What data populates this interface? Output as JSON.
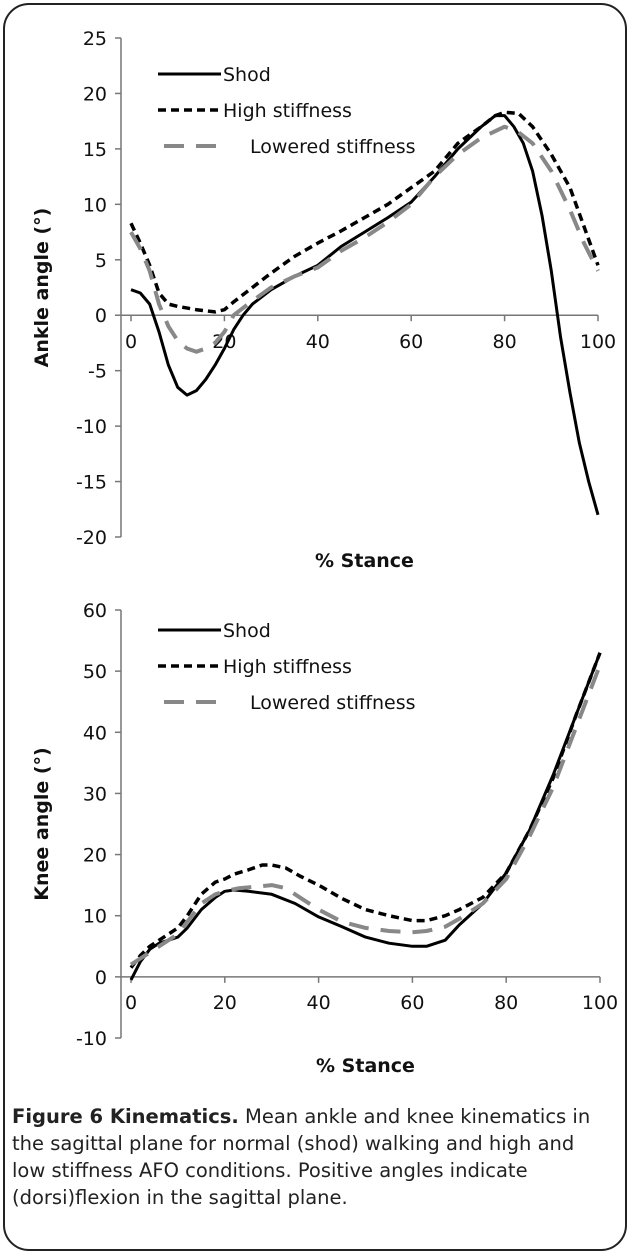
{
  "chart_data": [
    {
      "type": "line",
      "title": "",
      "xlabel": "% Stance",
      "ylabel": "Ankle angle (°)",
      "xlim": [
        0,
        100
      ],
      "ylim": [
        -20,
        25
      ],
      "xticks": [
        "0",
        "20",
        "40",
        "60",
        "80",
        "100"
      ],
      "yticks": [
        "-20",
        "-15",
        "-10",
        "-5",
        "0",
        "5",
        "10",
        "15",
        "20",
        "25"
      ],
      "grid": false,
      "legend": "top-left",
      "series": [
        {
          "name": "Shod",
          "style": "solid",
          "color": "#000000",
          "points": [
            [
              0,
              2.3
            ],
            [
              2,
              2.0
            ],
            [
              4,
              1.0
            ],
            [
              6,
              -1.5
            ],
            [
              8,
              -4.5
            ],
            [
              10,
              -6.5
            ],
            [
              12,
              -7.2
            ],
            [
              14,
              -6.8
            ],
            [
              16,
              -5.8
            ],
            [
              18,
              -4.5
            ],
            [
              20,
              -3.0
            ],
            [
              22,
              -1.3
            ],
            [
              24,
              0.0
            ],
            [
              26,
              1.0
            ],
            [
              30,
              2.3
            ],
            [
              35,
              3.5
            ],
            [
              40,
              4.5
            ],
            [
              45,
              6.2
            ],
            [
              50,
              7.5
            ],
            [
              55,
              8.8
            ],
            [
              60,
              10.2
            ],
            [
              65,
              12.5
            ],
            [
              70,
              15.0
            ],
            [
              75,
              17.0
            ],
            [
              78,
              18.0
            ],
            [
              80,
              18.0
            ],
            [
              82,
              17.0
            ],
            [
              84,
              15.5
            ],
            [
              86,
              13.0
            ],
            [
              88,
              9.0
            ],
            [
              90,
              4.0
            ],
            [
              92,
              -2.0
            ],
            [
              94,
              -7.0
            ],
            [
              96,
              -11.5
            ],
            [
              98,
              -15.0
            ],
            [
              100,
              -18.0
            ]
          ]
        },
        {
          "name": "High stiffness",
          "style": "dashed",
          "color": "#000000",
          "points": [
            [
              0,
              8.3
            ],
            [
              2,
              6.5
            ],
            [
              4,
              4.5
            ],
            [
              6,
              2.0
            ],
            [
              8,
              1.0
            ],
            [
              10,
              0.8
            ],
            [
              14,
              0.5
            ],
            [
              18,
              0.3
            ],
            [
              20,
              0.5
            ],
            [
              22,
              1.2
            ],
            [
              26,
              2.5
            ],
            [
              30,
              3.8
            ],
            [
              35,
              5.3
            ],
            [
              40,
              6.5
            ],
            [
              45,
              7.6
            ],
            [
              50,
              8.8
            ],
            [
              55,
              10.0
            ],
            [
              60,
              11.5
            ],
            [
              65,
              13.0
            ],
            [
              70,
              15.5
            ],
            [
              75,
              17.0
            ],
            [
              78,
              18.0
            ],
            [
              80,
              18.3
            ],
            [
              83,
              18.2
            ],
            [
              86,
              17.0
            ],
            [
              90,
              14.5
            ],
            [
              94,
              11.5
            ],
            [
              97,
              8.0
            ],
            [
              100,
              4.5
            ]
          ]
        },
        {
          "name": "Lowered stiffness",
          "style": "dashed",
          "color": "#888888",
          "points": [
            [
              0,
              7.5
            ],
            [
              2,
              6.0
            ],
            [
              4,
              4.0
            ],
            [
              6,
              1.0
            ],
            [
              8,
              -1.0
            ],
            [
              10,
              -2.3
            ],
            [
              12,
              -3.0
            ],
            [
              14,
              -3.3
            ],
            [
              16,
              -3.0
            ],
            [
              18,
              -2.5
            ],
            [
              20,
              -1.5
            ],
            [
              22,
              0.0
            ],
            [
              26,
              1.3
            ],
            [
              30,
              2.5
            ],
            [
              35,
              3.5
            ],
            [
              40,
              4.3
            ],
            [
              45,
              5.8
            ],
            [
              50,
              7.0
            ],
            [
              55,
              8.4
            ],
            [
              60,
              10.0
            ],
            [
              65,
              12.5
            ],
            [
              70,
              14.5
            ],
            [
              75,
              16.0
            ],
            [
              80,
              17.0
            ],
            [
              83,
              16.5
            ],
            [
              86,
              15.5
            ],
            [
              90,
              13.0
            ],
            [
              94,
              9.5
            ],
            [
              97,
              6.5
            ],
            [
              100,
              4.0
            ]
          ]
        }
      ]
    },
    {
      "type": "line",
      "title": "",
      "xlabel": "% Stance",
      "ylabel": "Knee angle (°)",
      "xlim": [
        0,
        100
      ],
      "ylim": [
        -10,
        60
      ],
      "xticks": [
        "0",
        "20",
        "40",
        "60",
        "80",
        "100"
      ],
      "yticks": [
        "-10",
        "0",
        "10",
        "20",
        "30",
        "40",
        "50",
        "60"
      ],
      "grid": false,
      "legend": "top-left",
      "series": [
        {
          "name": "Shod",
          "style": "solid",
          "color": "#000000",
          "points": [
            [
              0,
              -0.5
            ],
            [
              2,
              2.5
            ],
            [
              4,
              4.5
            ],
            [
              6,
              5.5
            ],
            [
              8,
              6.0
            ],
            [
              10,
              6.5
            ],
            [
              12,
              8.0
            ],
            [
              15,
              11.0
            ],
            [
              18,
              13.0
            ],
            [
              20,
              14.0
            ],
            [
              22,
              14.2
            ],
            [
              25,
              14.0
            ],
            [
              30,
              13.5
            ],
            [
              35,
              12.0
            ],
            [
              40,
              9.8
            ],
            [
              45,
              8.2
            ],
            [
              50,
              6.5
            ],
            [
              55,
              5.5
            ],
            [
              60,
              5.0
            ],
            [
              63,
              5.0
            ],
            [
              67,
              6.0
            ],
            [
              70,
              8.5
            ],
            [
              75,
              12.0
            ],
            [
              80,
              17.0
            ],
            [
              85,
              24.0
            ],
            [
              90,
              33.0
            ],
            [
              95,
              43.0
            ],
            [
              100,
              53.0
            ]
          ]
        },
        {
          "name": "High stiffness",
          "style": "dashed",
          "color": "#000000",
          "points": [
            [
              0,
              1.5
            ],
            [
              2,
              3.5
            ],
            [
              4,
              5.0
            ],
            [
              6,
              6.0
            ],
            [
              8,
              7.0
            ],
            [
              10,
              8.0
            ],
            [
              12,
              10.0
            ],
            [
              15,
              13.5
            ],
            [
              18,
              15.5
            ],
            [
              20,
              16.0
            ],
            [
              22,
              16.8
            ],
            [
              25,
              17.5
            ],
            [
              28,
              18.3
            ],
            [
              30,
              18.3
            ],
            [
              33,
              17.8
            ],
            [
              36,
              16.5
            ],
            [
              40,
              15.0
            ],
            [
              45,
              12.8
            ],
            [
              50,
              11.0
            ],
            [
              55,
              10.0
            ],
            [
              60,
              9.2
            ],
            [
              63,
              9.2
            ],
            [
              67,
              10.0
            ],
            [
              70,
              11.0
            ],
            [
              75,
              13.0
            ],
            [
              80,
              17.0
            ],
            [
              85,
              24.0
            ],
            [
              90,
              32.5
            ],
            [
              95,
              43.0
            ],
            [
              100,
              53.0
            ]
          ]
        },
        {
          "name": "Lowered stiffness",
          "style": "dashed",
          "color": "#888888",
          "points": [
            [
              0,
              2.0
            ],
            [
              2,
              3.0
            ],
            [
              4,
              4.0
            ],
            [
              6,
              5.0
            ],
            [
              8,
              6.0
            ],
            [
              10,
              7.0
            ],
            [
              12,
              9.0
            ],
            [
              15,
              12.0
            ],
            [
              18,
              13.5
            ],
            [
              20,
              14.0
            ],
            [
              23,
              14.5
            ],
            [
              26,
              14.7
            ],
            [
              30,
              15.0
            ],
            [
              33,
              14.5
            ],
            [
              36,
              13.0
            ],
            [
              40,
              11.0
            ],
            [
              45,
              9.0
            ],
            [
              50,
              8.0
            ],
            [
              55,
              7.5
            ],
            [
              60,
              7.3
            ],
            [
              63,
              7.5
            ],
            [
              67,
              8.2
            ],
            [
              70,
              9.5
            ],
            [
              75,
              12.0
            ],
            [
              80,
              16.0
            ],
            [
              85,
              23.0
            ],
            [
              90,
              31.0
            ],
            [
              95,
              41.0
            ],
            [
              100,
              51.0
            ]
          ]
        }
      ]
    }
  ],
  "caption": {
    "title": "Figure 6 Kinematics.",
    "text": " Mean ankle and knee kinematics in the sagittal plane for normal (shod) walking and high and low stiffness AFO conditions. Positive angles indicate (dorsi)flexion in the sagittal plane."
  }
}
